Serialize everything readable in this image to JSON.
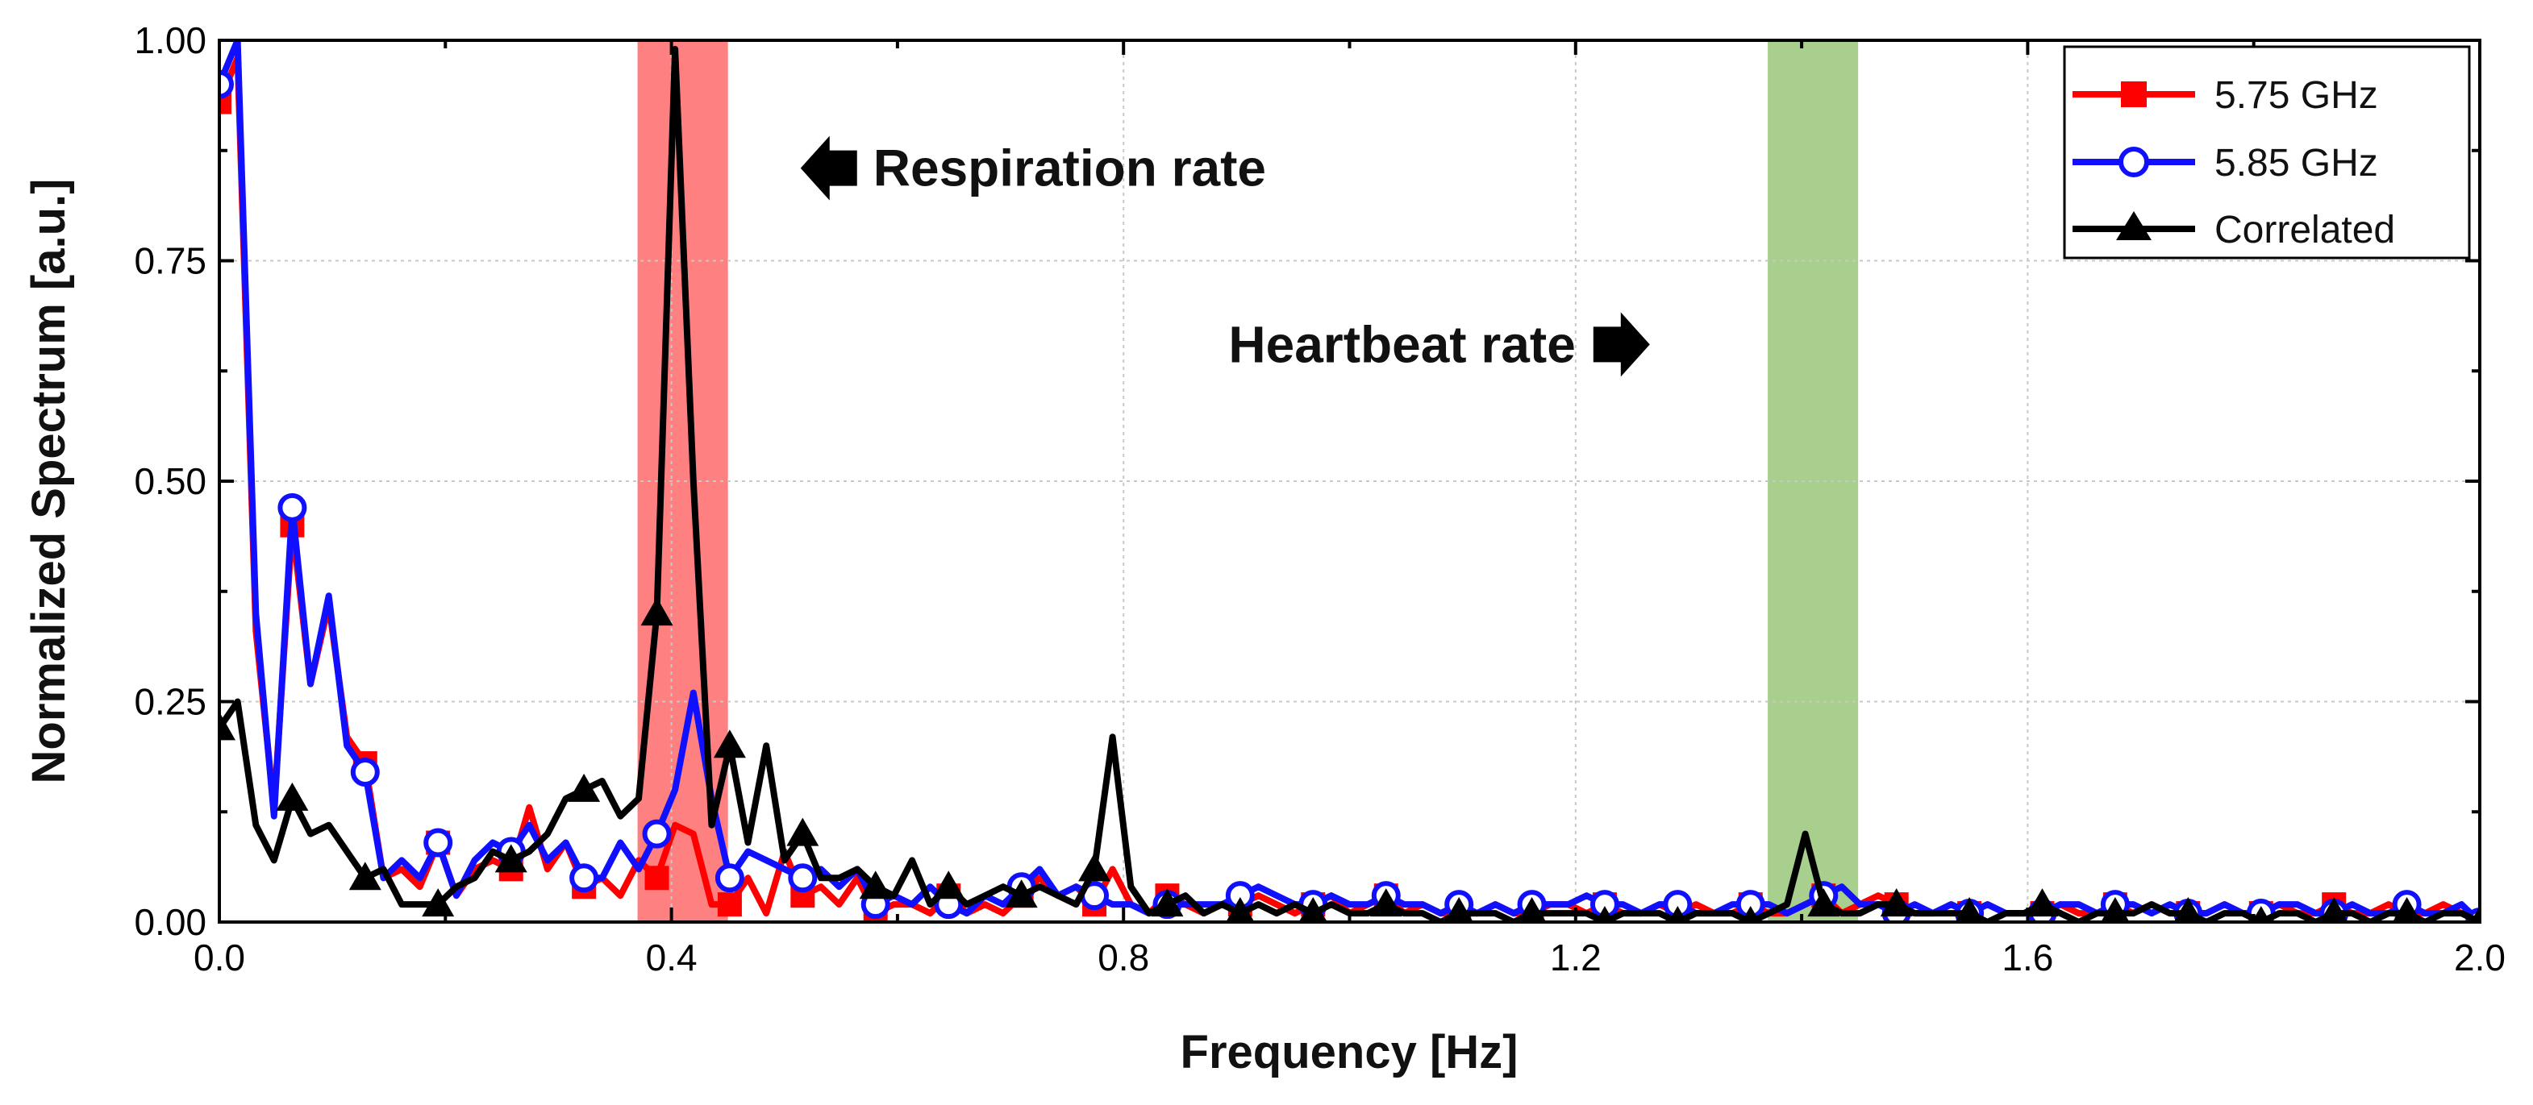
{
  "chart_data": {
    "type": "line",
    "title": "",
    "xlabel": "Frequency [Hz]",
    "ylabel": "Normalized Spectrum [a.u.]",
    "xlim": [
      0.0,
      2.0
    ],
    "ylim": [
      0.0,
      1.0
    ],
    "x_ticks": [
      "0.0",
      "0.4",
      "0.8",
      "1.2",
      "1.6",
      "2.0"
    ],
    "y_ticks": [
      "0.00",
      "0.25",
      "0.50",
      "0.75",
      "1.00"
    ],
    "grid": true,
    "legend_position": "top-right",
    "colors": {
      "red": "#ff0000",
      "blue": "#1010ff",
      "black": "#000000",
      "resp_band": "#ff8080",
      "heart_band": "#a8cf8e"
    },
    "bands": [
      {
        "name": "respiration",
        "from": 0.37,
        "to": 0.45,
        "color": "#ff8080"
      },
      {
        "name": "heartbeat",
        "from": 1.37,
        "to": 1.45,
        "color": "#a8cf8e"
      }
    ],
    "annotations": [
      {
        "text": "Respiration rate",
        "arrow": "left",
        "x": 0.5,
        "y": 0.855
      },
      {
        "text": "Heartbeat rate",
        "arrow": "right",
        "x": 1.2,
        "y": 0.655
      }
    ],
    "series": [
      {
        "name": "5.75 GHz",
        "color": "#ff0000",
        "marker": "square",
        "x": [
          0.0,
          0.0161,
          0.0323,
          0.0484,
          0.0645,
          0.0806,
          0.0968,
          0.1129,
          0.129,
          0.1452,
          0.1613,
          0.1774,
          0.1935,
          0.2097,
          0.2258,
          0.2419,
          0.2581,
          0.2742,
          0.2903,
          0.3065,
          0.3226,
          0.3387,
          0.3548,
          0.371,
          0.3871,
          0.4032,
          0.4194,
          0.4355,
          0.4516,
          0.4677,
          0.4839,
          0.5,
          0.5161,
          0.5323,
          0.5484,
          0.5645,
          0.5806,
          0.5968,
          0.6129,
          0.629,
          0.6452,
          0.6613,
          0.6774,
          0.6935,
          0.7097,
          0.7258,
          0.7419,
          0.7581,
          0.7742,
          0.7903,
          0.8065,
          0.8226,
          0.8387,
          0.8548,
          0.871,
          0.8871,
          0.9032,
          0.9194,
          0.9355,
          0.9516,
          0.9677,
          0.9839,
          1.0,
          1.0161,
          1.0323,
          1.0484,
          1.0645,
          1.0806,
          1.0968,
          1.1129,
          1.129,
          1.1452,
          1.1613,
          1.1774,
          1.1935,
          1.2097,
          1.2258,
          1.2419,
          1.2581,
          1.2742,
          1.2903,
          1.3065,
          1.3226,
          1.3387,
          1.3548,
          1.371,
          1.3871,
          1.4032,
          1.4194,
          1.4355,
          1.4516,
          1.4677,
          1.4839,
          1.5,
          1.5161,
          1.5323,
          1.5484,
          1.5645,
          1.5806,
          1.5968,
          1.6129,
          1.629,
          1.6452,
          1.6613,
          1.6774,
          1.6935,
          1.7097,
          1.7258,
          1.7419,
          1.7581,
          1.7742,
          1.7903,
          1.8065,
          1.8226,
          1.8387,
          1.8548,
          1.871,
          1.8871,
          1.9032,
          1.9194,
          1.9355,
          1.9516,
          1.9677,
          1.9839,
          2.0
        ],
        "y": [
          0.93,
          0.98,
          0.33,
          0.13,
          0.45,
          0.27,
          0.36,
          0.21,
          0.18,
          0.05,
          0.06,
          0.04,
          0.09,
          0.03,
          0.06,
          0.07,
          0.06,
          0.13,
          0.06,
          0.09,
          0.04,
          0.05,
          0.03,
          0.07,
          0.05,
          0.11,
          0.1,
          0.02,
          0.02,
          0.05,
          0.01,
          0.08,
          0.03,
          0.04,
          0.02,
          0.05,
          0.01,
          0.02,
          0.02,
          0.01,
          0.03,
          0.01,
          0.02,
          0.01,
          0.03,
          0.05,
          0.03,
          0.04,
          0.02,
          0.06,
          0.02,
          0.01,
          0.03,
          0.02,
          0.01,
          0.02,
          0.02,
          0.03,
          0.02,
          0.01,
          0.02,
          0.03,
          0.01,
          0.02,
          0.03,
          0.01,
          0.02,
          0.01,
          0.01,
          0.01,
          0.02,
          0.01,
          0.01,
          0.02,
          0.02,
          0.01,
          0.02,
          0.01,
          0.01,
          0.02,
          0.01,
          0.02,
          0.01,
          0.01,
          0.02,
          0.01,
          0.01,
          0.02,
          0.03,
          0.01,
          0.02,
          0.03,
          0.02,
          0.01,
          0.01,
          0.02,
          0.01,
          0.02,
          0.01,
          0.01,
          0.01,
          0.02,
          0.01,
          0.01,
          0.02,
          0.01,
          0.02,
          0.01,
          0.01,
          0.01,
          0.02,
          0.01,
          0.01,
          0.02,
          0.01,
          0.01,
          0.02,
          0.01,
          0.01,
          0.02,
          0.01,
          0.01,
          0.02,
          0.01,
          0.0
        ]
      },
      {
        "name": "5.85 GHz",
        "color": "#1010ff",
        "marker": "open-circle",
        "x": [
          0.0,
          0.0161,
          0.0323,
          0.0484,
          0.0645,
          0.0806,
          0.0968,
          0.1129,
          0.129,
          0.1452,
          0.1613,
          0.1774,
          0.1935,
          0.2097,
          0.2258,
          0.2419,
          0.2581,
          0.2742,
          0.2903,
          0.3065,
          0.3226,
          0.3387,
          0.3548,
          0.371,
          0.3871,
          0.4032,
          0.4194,
          0.4355,
          0.4516,
          0.4677,
          0.4839,
          0.5,
          0.5161,
          0.5323,
          0.5484,
          0.5645,
          0.5806,
          0.5968,
          0.6129,
          0.629,
          0.6452,
          0.6613,
          0.6774,
          0.6935,
          0.7097,
          0.7258,
          0.7419,
          0.7581,
          0.7742,
          0.7903,
          0.8065,
          0.8226,
          0.8387,
          0.8548,
          0.871,
          0.8871,
          0.9032,
          0.9194,
          0.9355,
          0.9516,
          0.9677,
          0.9839,
          1.0,
          1.0161,
          1.0323,
          1.0484,
          1.0645,
          1.0806,
          1.0968,
          1.1129,
          1.129,
          1.1452,
          1.1613,
          1.1774,
          1.1935,
          1.2097,
          1.2258,
          1.2419,
          1.2581,
          1.2742,
          1.2903,
          1.3065,
          1.3226,
          1.3387,
          1.3548,
          1.371,
          1.3871,
          1.4032,
          1.4194,
          1.4355,
          1.4516,
          1.4677,
          1.4839,
          1.5,
          1.5161,
          1.5323,
          1.5484,
          1.5645,
          1.5806,
          1.5968,
          1.6129,
          1.629,
          1.6452,
          1.6613,
          1.6774,
          1.6935,
          1.7097,
          1.7258,
          1.7419,
          1.7581,
          1.7742,
          1.7903,
          1.8065,
          1.8226,
          1.8387,
          1.8548,
          1.871,
          1.8871,
          1.9032,
          1.9194,
          1.9355,
          1.9516,
          1.9677,
          1.9839,
          2.0
        ],
        "y": [
          0.95,
          1.0,
          0.35,
          0.12,
          0.47,
          0.27,
          0.37,
          0.2,
          0.17,
          0.05,
          0.07,
          0.05,
          0.09,
          0.03,
          0.07,
          0.09,
          0.08,
          0.11,
          0.07,
          0.09,
          0.05,
          0.05,
          0.09,
          0.06,
          0.1,
          0.15,
          0.26,
          0.14,
          0.05,
          0.08,
          0.07,
          0.06,
          0.05,
          0.06,
          0.04,
          0.06,
          0.02,
          0.03,
          0.02,
          0.04,
          0.02,
          0.01,
          0.03,
          0.02,
          0.04,
          0.06,
          0.03,
          0.04,
          0.03,
          0.02,
          0.02,
          0.01,
          0.02,
          0.02,
          0.02,
          0.02,
          0.03,
          0.04,
          0.03,
          0.02,
          0.02,
          0.03,
          0.02,
          0.02,
          0.03,
          0.02,
          0.02,
          0.01,
          0.02,
          0.01,
          0.02,
          0.01,
          0.02,
          0.02,
          0.02,
          0.03,
          0.02,
          0.02,
          0.01,
          0.02,
          0.02,
          0.01,
          0.01,
          0.02,
          0.02,
          0.02,
          0.01,
          0.02,
          0.03,
          0.04,
          0.02,
          0.02,
          0.01,
          0.02,
          0.01,
          0.02,
          0.01,
          0.02,
          0.01,
          0.01,
          0.01,
          0.02,
          0.02,
          0.01,
          0.02,
          0.02,
          0.01,
          0.02,
          0.01,
          0.01,
          0.02,
          0.01,
          0.01,
          0.02,
          0.02,
          0.01,
          0.01,
          0.02,
          0.01,
          0.01,
          0.02,
          0.01,
          0.01,
          0.02,
          0.0
        ]
      },
      {
        "name": "Correlated",
        "color": "#000000",
        "marker": "triangle",
        "x": [
          0.0,
          0.0161,
          0.0323,
          0.0484,
          0.0645,
          0.0806,
          0.0968,
          0.1129,
          0.129,
          0.1452,
          0.1613,
          0.1774,
          0.1935,
          0.2097,
          0.2258,
          0.2419,
          0.2581,
          0.2742,
          0.2903,
          0.3065,
          0.3226,
          0.3387,
          0.3548,
          0.371,
          0.3871,
          0.4032,
          0.4194,
          0.4355,
          0.4516,
          0.4677,
          0.4839,
          0.5,
          0.5161,
          0.5323,
          0.5484,
          0.5645,
          0.5806,
          0.5968,
          0.6129,
          0.629,
          0.6452,
          0.6613,
          0.6774,
          0.6935,
          0.7097,
          0.7258,
          0.7419,
          0.7581,
          0.7742,
          0.7903,
          0.8065,
          0.8226,
          0.8387,
          0.8548,
          0.871,
          0.8871,
          0.9032,
          0.9194,
          0.9355,
          0.9516,
          0.9677,
          0.9839,
          1.0,
          1.0161,
          1.0323,
          1.0484,
          1.0645,
          1.0806,
          1.0968,
          1.1129,
          1.129,
          1.1452,
          1.1613,
          1.1774,
          1.1935,
          1.2097,
          1.2258,
          1.2419,
          1.2581,
          1.2742,
          1.2903,
          1.3065,
          1.3226,
          1.3387,
          1.3548,
          1.371,
          1.3871,
          1.4032,
          1.4194,
          1.4355,
          1.4516,
          1.4677,
          1.4839,
          1.5,
          1.5161,
          1.5323,
          1.5484,
          1.5645,
          1.5806,
          1.5968,
          1.6129,
          1.629,
          1.6452,
          1.6613,
          1.6774,
          1.6935,
          1.7097,
          1.7258,
          1.7419,
          1.7581,
          1.7742,
          1.7903,
          1.8065,
          1.8226,
          1.8387,
          1.8548,
          1.871,
          1.8871,
          1.9032,
          1.9194,
          1.9355,
          1.9516,
          1.9677,
          1.9839,
          2.0
        ],
        "y": [
          0.22,
          0.25,
          0.11,
          0.07,
          0.14,
          0.1,
          0.11,
          0.08,
          0.05,
          0.06,
          0.02,
          0.02,
          0.02,
          0.04,
          0.05,
          0.08,
          0.07,
          0.08,
          0.1,
          0.14,
          0.15,
          0.16,
          0.12,
          0.14,
          0.35,
          0.99,
          0.5,
          0.11,
          0.2,
          0.09,
          0.2,
          0.07,
          0.1,
          0.05,
          0.05,
          0.06,
          0.04,
          0.03,
          0.07,
          0.02,
          0.04,
          0.02,
          0.03,
          0.04,
          0.03,
          0.04,
          0.03,
          0.02,
          0.06,
          0.21,
          0.04,
          0.01,
          0.02,
          0.03,
          0.01,
          0.02,
          0.01,
          0.02,
          0.01,
          0.02,
          0.01,
          0.02,
          0.01,
          0.01,
          0.02,
          0.01,
          0.01,
          0.0,
          0.01,
          0.01,
          0.01,
          0.0,
          0.01,
          0.01,
          0.01,
          0.01,
          0.0,
          0.01,
          0.01,
          0.01,
          0.0,
          0.01,
          0.01,
          0.01,
          0.0,
          0.01,
          0.02,
          0.1,
          0.02,
          0.01,
          0.01,
          0.02,
          0.02,
          0.01,
          0.01,
          0.01,
          0.01,
          0.0,
          0.01,
          0.01,
          0.02,
          0.01,
          0.0,
          0.01,
          0.01,
          0.01,
          0.02,
          0.01,
          0.01,
          0.0,
          0.01,
          0.01,
          0.0,
          0.01,
          0.01,
          0.0,
          0.01,
          0.01,
          0.0,
          0.01,
          0.01,
          0.0,
          0.01,
          0.01,
          0.0
        ]
      }
    ]
  }
}
